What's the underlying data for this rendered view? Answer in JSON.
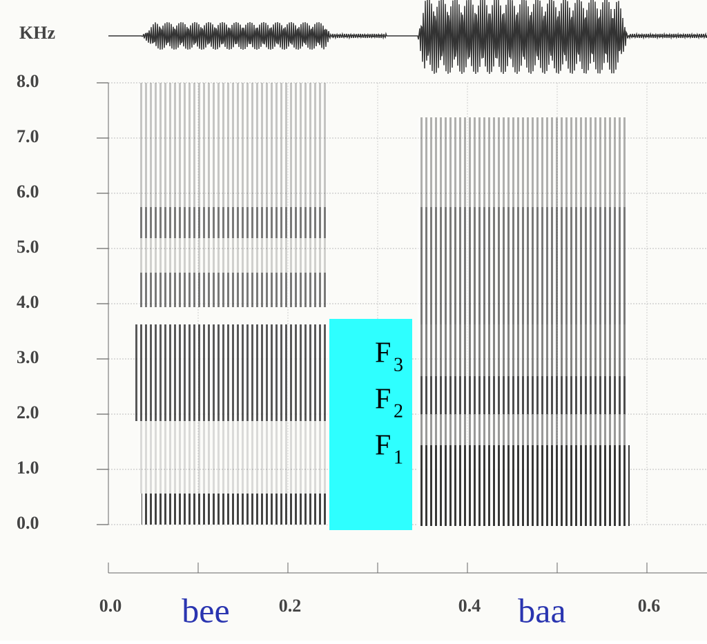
{
  "y_axis": {
    "unit": "KHz",
    "ticks": [
      "8.0",
      "7.0",
      "6.0",
      "5.0",
      "4.0",
      "3.0",
      "2.0",
      "1.0",
      "0.0"
    ]
  },
  "x_axis": {
    "ticks": [
      "0.0",
      "0.2",
      "0.4",
      "0.6"
    ]
  },
  "words": [
    "bee",
    "baa"
  ],
  "formants": [
    {
      "letter": "F",
      "index": "3"
    },
    {
      "letter": "F",
      "index": "2"
    },
    {
      "letter": "F",
      "index": "1"
    }
  ]
}
